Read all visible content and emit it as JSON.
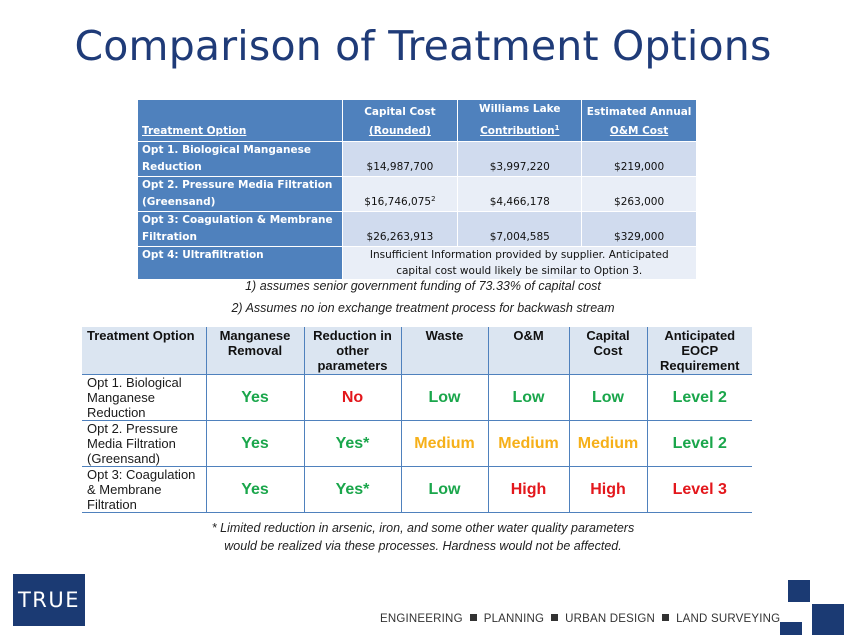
{
  "title": "Comparison of Treatment Options",
  "table1": {
    "headers": {
      "option": "Treatment Option",
      "capital_line1": "Capital Cost",
      "capital_line2": "(Rounded)",
      "wl_line1": "Williams Lake",
      "wl_line2": "Contribution",
      "wl_sup": "1",
      "om_line1": "Estimated Annual",
      "om_line2": "O&M Cost"
    },
    "rows": [
      {
        "option_line1": "Opt 1. Biological Manganese",
        "option_line2": "Reduction",
        "capital": "$14,987,700",
        "capital_sup": "",
        "contribution": "$3,997,220",
        "om": "$219,000"
      },
      {
        "option_line1": "Opt 2. Pressure Media Filtration",
        "option_line2": "(Greensand)",
        "capital": "$16,746,075",
        "capital_sup": "2",
        "contribution": "$4,466,178",
        "om": "$263,000"
      },
      {
        "option_line1": "Opt 3: Coagulation & Membrane",
        "option_line2": "Filtration",
        "capital": "$26,263,913",
        "capital_sup": "",
        "contribution": "$7,004,585",
        "om": "$329,000"
      }
    ],
    "row4": {
      "option": "Opt 4: Ultrafiltration",
      "note_line1": "Insufficient Information provided by supplier. Anticipated",
      "note_line2": "capital cost would likely be similar to Option 3."
    }
  },
  "footnotes": {
    "one": "1)  assumes senior government funding of 73.33% of capital cost",
    "two": "2)  Assumes no ion exchange treatment process for backwash stream"
  },
  "table2": {
    "headers": {
      "option": "Treatment Option",
      "manganese_l1": "Manganese",
      "manganese_l2": "Removal",
      "reduction_l1": "Reduction in",
      "reduction_l2": "other",
      "reduction_l3": "parameters",
      "waste": "Waste",
      "om": "O&M",
      "capital_l1": "Capital",
      "capital_l2": "Cost",
      "eocp_l1": "Anticipated",
      "eocp_l2": "EOCP",
      "eocp_l3": "Requirement"
    },
    "rows": [
      {
        "option_l1": "Opt 1. Biological",
        "option_l2": "Manganese",
        "option_l3": "Reduction",
        "manganese": "Yes",
        "reduction": "No",
        "waste": "Low",
        "om": "Low",
        "capital": "Low",
        "eocp": "Level 2"
      },
      {
        "option_l1": "Opt 2. Pressure",
        "option_l2": "Media Filtration",
        "option_l3": "(Greensand)",
        "manganese": "Yes",
        "reduction": "Yes*",
        "waste": "Medium",
        "om": "Medium",
        "capital": "Medium",
        "eocp": "Level 2"
      },
      {
        "option_l1": "Opt 3: Coagulation",
        "option_l2": "& Membrane",
        "option_l3": "Filtration",
        "manganese": "Yes",
        "reduction": "Yes*",
        "waste": "Low",
        "om": "High",
        "capital": "High",
        "eocp": "Level 3"
      }
    ]
  },
  "table2_note": {
    "line1": "* Limited reduction in arsenic, iron, and some other water quality parameters",
    "line2": "would be realized via these processes. Hardness would not be affected."
  },
  "footer": {
    "logo_text": "TRUE",
    "tag1": "ENGINEERING",
    "tag2": "PLANNING",
    "tag3": "URBAN DESIGN",
    "tag4": "LAND SURVEYING"
  },
  "colors": {
    "title": "#1f3b78",
    "header_blue": "#4f81bd",
    "good": "#1aa64b",
    "bad": "#e3171c",
    "medium": "#f6b019",
    "brand": "#1b3a73"
  }
}
